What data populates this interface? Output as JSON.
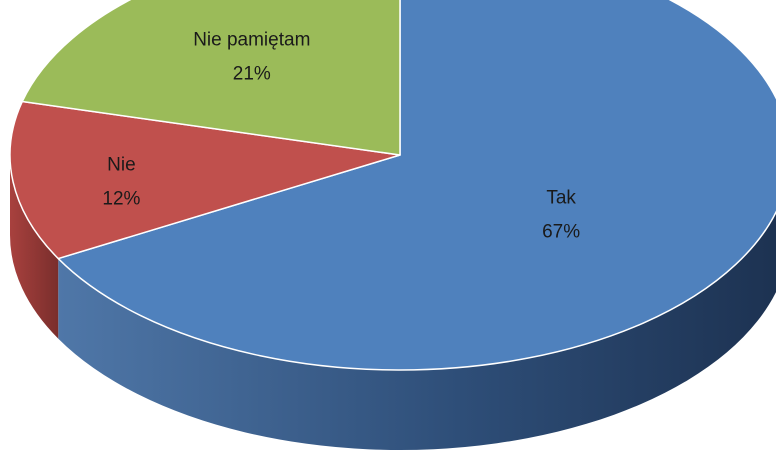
{
  "chart_data": {
    "type": "pie",
    "style": "3d",
    "title": "",
    "slices": [
      {
        "label": "Tak",
        "value": 67,
        "display": "67%",
        "color": "#4F81BD",
        "side_color": "#2B4A73"
      },
      {
        "label": "Nie",
        "value": 12,
        "display": "12%",
        "color": "#C0504D",
        "side_color": "#7A2E2C"
      },
      {
        "label": "Nie pamiętam",
        "value": 21,
        "display": "21%",
        "color": "#9BBB59",
        "side_color": "#5E7A30"
      }
    ],
    "legend": "none"
  }
}
